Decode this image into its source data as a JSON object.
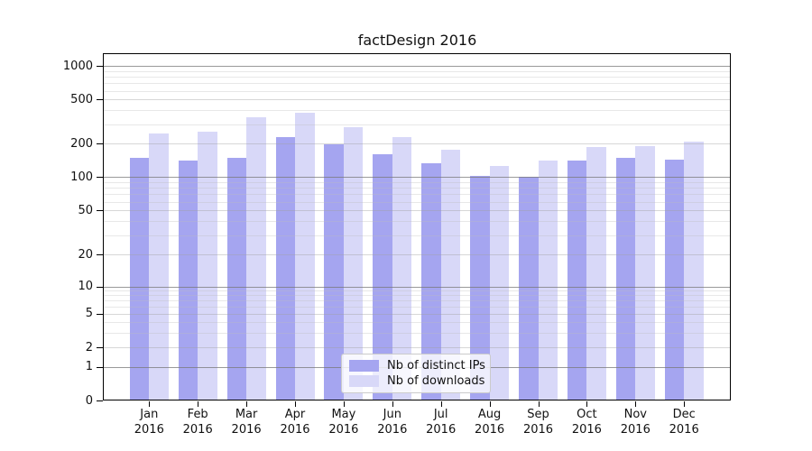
{
  "title": "factDesign 2016",
  "chart_data": {
    "type": "bar",
    "title": "factDesign 2016",
    "yscale": "symlog",
    "grid": "major+minor",
    "legend_position": "lower-center-inside",
    "categories": [
      "Jan",
      "Feb",
      "Mar",
      "Apr",
      "May",
      "Jun",
      "Jul",
      "Aug",
      "Sep",
      "Oct",
      "Nov",
      "Dec"
    ],
    "category_year": "2016",
    "yticks": [
      0,
      1,
      2,
      5,
      10,
      20,
      50,
      100,
      200,
      500,
      1000
    ],
    "minor_yticks": [
      3,
      4,
      6,
      7,
      8,
      9,
      30,
      40,
      60,
      70,
      80,
      90,
      300,
      400,
      600,
      700,
      800,
      900
    ],
    "ylim": [
      0,
      1300
    ],
    "series": [
      {
        "name": "Nb of distinct IPs",
        "color": "#a5a5f0",
        "values": [
          150,
          142,
          149,
          230,
          197,
          160,
          134,
          102,
          100,
          140,
          148,
          145
        ]
      },
      {
        "name": "Nb of downloads",
        "color": "#d8d8f8",
        "values": [
          247,
          257,
          348,
          380,
          282,
          230,
          177,
          126,
          141,
          188,
          191,
          210
        ]
      }
    ]
  }
}
